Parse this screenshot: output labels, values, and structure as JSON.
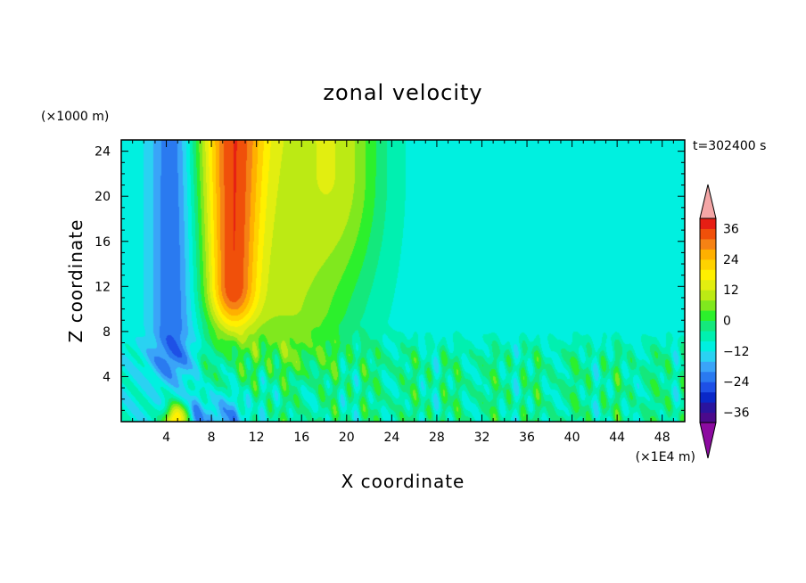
{
  "chart_data": {
    "type": "heatmap",
    "title": "zonal velocity",
    "xlabel": "X coordinate",
    "ylabel": "Z coordinate",
    "x_scale_label": "(×1E4 m)",
    "y_scale_label": "(×1000 m)",
    "time_label": "t=302400 s",
    "x_range": [
      0,
      50
    ],
    "y_range": [
      0,
      25
    ],
    "x_ticks": [
      "4",
      "8",
      "12",
      "16",
      "20",
      "24",
      "28",
      "32",
      "36",
      "40",
      "44",
      "48"
    ],
    "y_ticks": [
      "4",
      "8",
      "12",
      "16",
      "20",
      "24"
    ],
    "colorbar": {
      "levels": [
        -40,
        -36,
        -32,
        -28,
        -24,
        -20,
        -16,
        -12,
        -8,
        -4,
        0,
        4,
        8,
        12,
        16,
        20,
        24,
        28,
        32,
        36,
        40
      ],
      "labels": [
        "36",
        "24",
        "12",
        "0",
        "−12",
        "−24",
        "−36"
      ],
      "colors": [
        "#4b0a8c",
        "#2a149e",
        "#0a28c8",
        "#1e50e6",
        "#2a7af0",
        "#3aa4f8",
        "#2ad2f2",
        "#00f0e0",
        "#00f0b0",
        "#14e87c",
        "#2cf02c",
        "#80e81e",
        "#bcea14",
        "#e2ee10",
        "#fff000",
        "#ffd200",
        "#ffb000",
        "#f58214",
        "#f0500a",
        "#e61e14"
      ],
      "under_color": "#8c0aa0",
      "over_color": "#f4a6a6"
    },
    "field_features": [
      {
        "name": "westward jet",
        "x_center": 4.5,
        "x_halfwidth": 1.3,
        "z_range": [
          3,
          25
        ],
        "peak": -24
      },
      {
        "name": "eastward jet",
        "x_center": 9.8,
        "x_halfwidth": 1.6,
        "z_range": [
          6,
          25
        ],
        "peak": 28
      },
      {
        "name": "surface easterly",
        "x_range": [
          6,
          12
        ],
        "z_range": [
          0,
          3
        ],
        "peak": -24
      },
      {
        "name": "surface westerly",
        "x_center": 4.8,
        "z_range": [
          0,
          2
        ],
        "peak": 30
      },
      {
        "name": "background",
        "value": -10
      },
      {
        "name": "boundary-layer cells",
        "z_range": [
          0,
          8
        ],
        "amplitude": 10
      }
    ]
  }
}
